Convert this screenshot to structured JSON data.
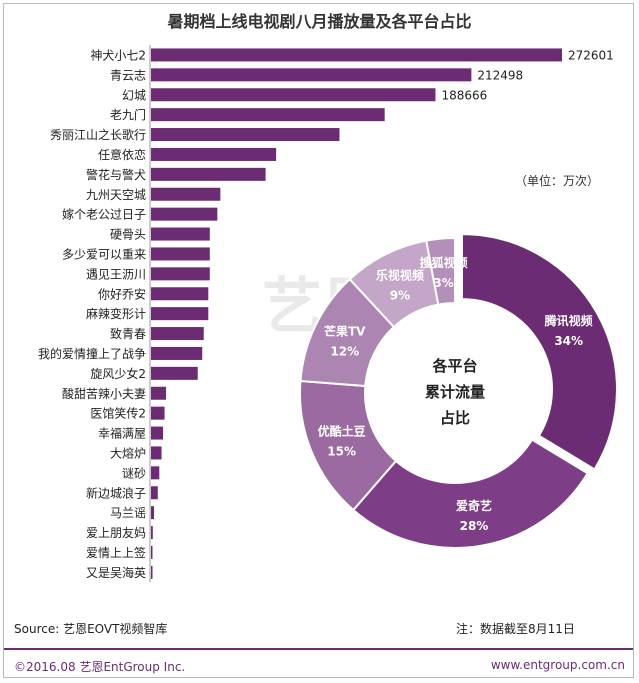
{
  "chart_data": [
    {
      "type": "bar",
      "orientation": "horizontal",
      "title": "暑期档上线电视剧八月播放量及各平台占比",
      "unit_label": "（单位：万次）",
      "categories": [
        "神犬小七2",
        "青云志",
        "幻城",
        "老九门",
        "秀丽江山之长歌行",
        "任意依恋",
        "警花与警犬",
        "九州天空城",
        "嫁个老公过日子",
        "硬骨头",
        "多少爱可以重来",
        "遇见王沥川",
        "你好乔安",
        "麻辣变形计",
        "致青春",
        "我的爱情撞上了战争",
        "旋风少女2",
        "酸甜苦辣小夫妻",
        "医馆笑传2",
        "幸福满屋",
        "大熔炉",
        "谜砂",
        "新边城浪子",
        "马兰谣",
        "爱上朋友妈",
        "爱情上上签",
        "又是吴海英"
      ],
      "values": [
        272601,
        212498,
        188666,
        155000,
        125000,
        83000,
        76000,
        46000,
        44000,
        39000,
        39000,
        39000,
        38000,
        38000,
        35000,
        34000,
        31000,
        10000,
        9000,
        8000,
        7000,
        5500,
        4500,
        2000,
        1200,
        900,
        600
      ],
      "value_labels": [
        "272601",
        "212498",
        "188666",
        "",
        "",
        "",
        "",
        "",
        "",
        "",
        "",
        "",
        "",
        "",
        "",
        "",
        "",
        "",
        "",
        "",
        "",
        "",
        "",
        "",
        "",
        "",
        ""
      ],
      "bar_color": "#6b2c74",
      "source": "Source: 艺恩EOVT视频智库",
      "note": "注：数据截至8月11日"
    },
    {
      "type": "pie",
      "style": "donut",
      "center_label": [
        "各平台",
        "累计流量",
        "占比"
      ],
      "slices": [
        {
          "label": "腾讯视频",
          "value": 34,
          "pct_label": "34%",
          "color": "#6b2c74"
        },
        {
          "label": "爱奇艺",
          "value": 28,
          "pct_label": "28%",
          "color": "#7e3d87"
        },
        {
          "label": "优酷土豆",
          "value": 15,
          "pct_label": "15%",
          "color": "#9a6aa1"
        },
        {
          "label": "芒果TV",
          "value": 12,
          "pct_label": "12%",
          "color": "#ad85b2"
        },
        {
          "label": "乐视视频",
          "value": 9,
          "pct_label": "9%",
          "color": "#c4a6c8"
        },
        {
          "label": "搜狐视频",
          "value": 3,
          "pct_label": "3%",
          "color": "#b48fb9"
        }
      ]
    }
  ],
  "footer": {
    "copyright": "©2016.08 艺恩EntGroup Inc.",
    "website": "www.entgroup.com.cn"
  },
  "watermark": "艺恩"
}
